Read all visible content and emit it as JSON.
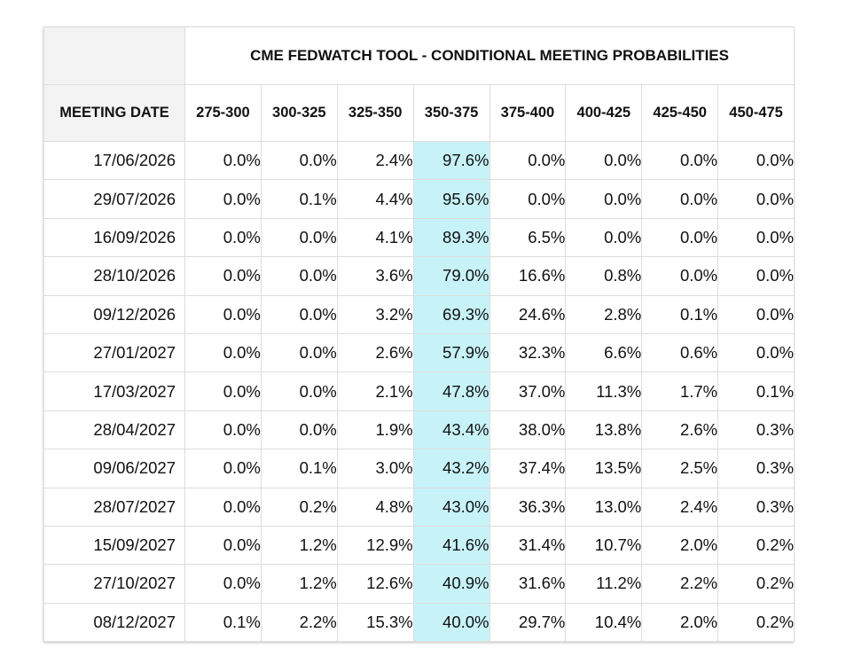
{
  "table": {
    "title": "CME FEDWATCH TOOL - CONDITIONAL MEETING PROBABILITIES",
    "date_header": "MEETING DATE",
    "columns": [
      "275-300",
      "300-325",
      "325-350",
      "350-375",
      "375-400",
      "400-425",
      "425-450",
      "450-475"
    ],
    "highlight_column": "350-375",
    "highlight_color": "#c7f3f8",
    "rows": [
      {
        "date": "17/06/2026",
        "values": [
          "0.0%",
          "0.0%",
          "2.4%",
          "97.6%",
          "0.0%",
          "0.0%",
          "0.0%",
          "0.0%"
        ]
      },
      {
        "date": "29/07/2026",
        "values": [
          "0.0%",
          "0.1%",
          "4.4%",
          "95.6%",
          "0.0%",
          "0.0%",
          "0.0%",
          "0.0%"
        ]
      },
      {
        "date": "16/09/2026",
        "values": [
          "0.0%",
          "0.0%",
          "4.1%",
          "89.3%",
          "6.5%",
          "0.0%",
          "0.0%",
          "0.0%"
        ]
      },
      {
        "date": "28/10/2026",
        "values": [
          "0.0%",
          "0.0%",
          "3.6%",
          "79.0%",
          "16.6%",
          "0.8%",
          "0.0%",
          "0.0%"
        ]
      },
      {
        "date": "09/12/2026",
        "values": [
          "0.0%",
          "0.0%",
          "3.2%",
          "69.3%",
          "24.6%",
          "2.8%",
          "0.1%",
          "0.0%"
        ]
      },
      {
        "date": "27/01/2027",
        "values": [
          "0.0%",
          "0.0%",
          "2.6%",
          "57.9%",
          "32.3%",
          "6.6%",
          "0.6%",
          "0.0%"
        ]
      },
      {
        "date": "17/03/2027",
        "values": [
          "0.0%",
          "0.0%",
          "2.1%",
          "47.8%",
          "37.0%",
          "11.3%",
          "1.7%",
          "0.1%"
        ]
      },
      {
        "date": "28/04/2027",
        "values": [
          "0.0%",
          "0.0%",
          "1.9%",
          "43.4%",
          "38.0%",
          "13.8%",
          "2.6%",
          "0.3%"
        ]
      },
      {
        "date": "09/06/2027",
        "values": [
          "0.0%",
          "0.1%",
          "3.0%",
          "43.2%",
          "37.4%",
          "13.5%",
          "2.5%",
          "0.3%"
        ]
      },
      {
        "date": "28/07/2027",
        "values": [
          "0.0%",
          "0.2%",
          "4.8%",
          "43.0%",
          "36.3%",
          "13.0%",
          "2.4%",
          "0.3%"
        ]
      },
      {
        "date": "15/09/2027",
        "values": [
          "0.0%",
          "1.2%",
          "12.9%",
          "41.6%",
          "31.4%",
          "10.7%",
          "2.0%",
          "0.2%"
        ]
      },
      {
        "date": "27/10/2027",
        "values": [
          "0.0%",
          "1.2%",
          "12.6%",
          "40.9%",
          "31.6%",
          "11.2%",
          "2.2%",
          "0.2%"
        ]
      },
      {
        "date": "08/12/2027",
        "values": [
          "0.1%",
          "2.2%",
          "15.3%",
          "40.0%",
          "29.7%",
          "10.4%",
          "2.0%",
          "0.2%"
        ]
      }
    ]
  }
}
